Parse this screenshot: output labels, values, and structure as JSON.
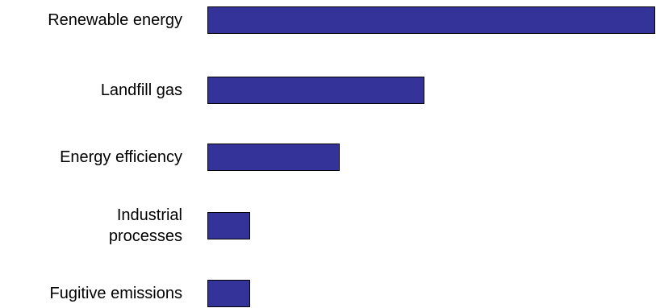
{
  "chart_data": {
    "type": "bar",
    "orientation": "horizontal",
    "title": "",
    "xlabel": "",
    "ylabel": "",
    "categories": [
      "Renewable energy",
      "Landfill gas",
      "Energy efficiency",
      "Industrial processes",
      "Fugitive emissions"
    ],
    "category_lines": [
      [
        "Renewable energy"
      ],
      [
        "Landfill gas"
      ],
      [
        "Energy efficiency"
      ],
      [
        "Industrial",
        "processes"
      ],
      [
        "Fugitive emissions"
      ]
    ],
    "values": [
      100,
      48.5,
      29.5,
      9.5,
      9.5
    ],
    "xlim": [
      0,
      100
    ],
    "grid": false,
    "bar_color": "#333399",
    "bar_border_color": "#000000"
  }
}
